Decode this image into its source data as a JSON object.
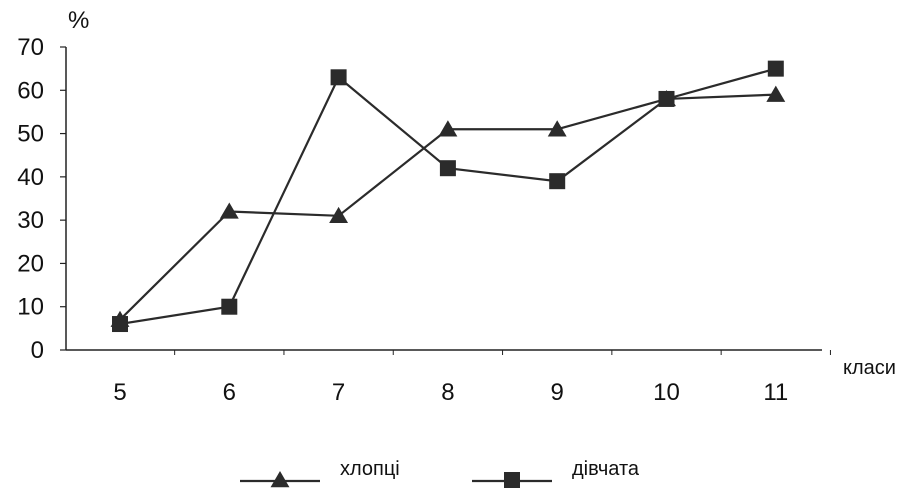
{
  "chart_data": {
    "type": "line",
    "y_unit_label": "%",
    "x_unit_label": "класи",
    "categories": [
      "5",
      "6",
      "7",
      "8",
      "9",
      "10",
      "11"
    ],
    "ylim": [
      0,
      70
    ],
    "yticks": [
      0,
      10,
      20,
      30,
      40,
      50,
      60,
      70
    ],
    "grid": false,
    "legend_position": "bottom",
    "series": [
      {
        "name": "хлопці",
        "marker": "triangle",
        "color": "#2b2b2b",
        "values": [
          7,
          32,
          31,
          51,
          51,
          58,
          59
        ]
      },
      {
        "name": "дівчата",
        "marker": "square",
        "color": "#2b2b2b",
        "values": [
          6,
          10,
          63,
          42,
          39,
          58,
          65
        ]
      }
    ]
  }
}
